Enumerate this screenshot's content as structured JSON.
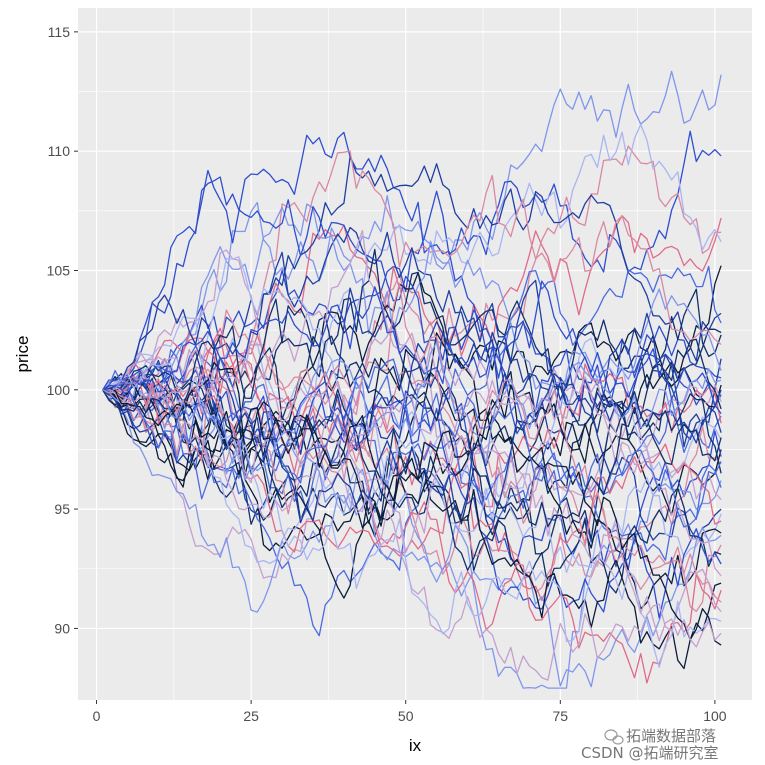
{
  "chart_data": {
    "type": "line",
    "title": "",
    "xlabel": "ix",
    "ylabel": "price",
    "xlim": [
      -3,
      106
    ],
    "ylim": [
      87,
      116
    ],
    "x_ticks": [
      0,
      25,
      50,
      75,
      100
    ],
    "x_tick_labels": [
      "0",
      "25",
      "50",
      "75",
      "100"
    ],
    "y_ticks": [
      90,
      95,
      100,
      105,
      110,
      115
    ],
    "y_tick_labels": [
      "90",
      "95",
      "100",
      "105",
      "110",
      "115"
    ],
    "x_range": [
      1,
      101
    ],
    "start_value": 100,
    "series_count": 50,
    "grid": true,
    "legend": "none",
    "panel_background": "#ebebeb",
    "grid_color": "#ffffff",
    "palette": [
      "#0b1d3a",
      "#12306b",
      "#1f3fa3",
      "#2f4fd0",
      "#4a6be0",
      "#7f96ec",
      "#a9b6f2",
      "#c4a0cf",
      "#d98aa3",
      "#e06b88"
    ],
    "series_endpoints": [
      {
        "color": "#7f96ec",
        "peak": 114.8,
        "end": 113.2
      },
      {
        "color": "#2f4fd0",
        "peak": 112.6,
        "end": 109.8
      },
      {
        "color": "#e06b88",
        "peak": 109.3,
        "end": 107.2
      },
      {
        "color": "#d98aa3",
        "peak": 108.5,
        "end": 106.6
      },
      {
        "color": "#12306b",
        "peak": 108.0,
        "end": 102.4
      },
      {
        "color": "#a9b6f2",
        "peak": 106.5,
        "end": 106.2
      },
      {
        "color": "#0b1d3a",
        "peak": 105.2,
        "end": 105.2
      },
      {
        "color": "#2f4fd0",
        "peak": 107.7,
        "end": 100.5
      },
      {
        "color": "#1f3fa3",
        "peak": 104.5,
        "end": 103.2
      },
      {
        "color": "#4a6be0",
        "peak": 104.0,
        "end": 102.8
      },
      {
        "color": "#12306b",
        "peak": 104.6,
        "end": 102.3
      },
      {
        "color": "#d98aa3",
        "peak": 104.2,
        "end": 101.9
      },
      {
        "color": "#1f3fa3",
        "peak": 103.8,
        "end": 101.3
      },
      {
        "color": "#7f96ec",
        "peak": 103.4,
        "end": 100.8
      },
      {
        "color": "#0b1d3a",
        "peak": 104.0,
        "end": 100.2
      },
      {
        "color": "#2f4fd0",
        "peak": 103.5,
        "end": 99.8
      },
      {
        "color": "#c4a0cf",
        "peak": 102.9,
        "end": 99.5
      },
      {
        "color": "#12306b",
        "peak": 103.3,
        "end": 99.2
      },
      {
        "color": "#4a6be0",
        "peak": 102.8,
        "end": 98.9
      },
      {
        "color": "#e06b88",
        "peak": 103.6,
        "end": 98.6
      },
      {
        "color": "#1f3fa3",
        "peak": 102.5,
        "end": 98.2
      },
      {
        "color": "#a9b6f2",
        "peak": 102.3,
        "end": 97.9
      },
      {
        "color": "#0b1d3a",
        "peak": 102.8,
        "end": 97.5
      },
      {
        "color": "#2f4fd0",
        "peak": 102.2,
        "end": 97.2
      },
      {
        "color": "#d98aa3",
        "peak": 102.0,
        "end": 96.9
      },
      {
        "color": "#12306b",
        "peak": 101.9,
        "end": 96.5
      },
      {
        "color": "#7f96ec",
        "peak": 101.6,
        "end": 96.2
      },
      {
        "color": "#4a6be0",
        "peak": 101.8,
        "end": 95.9
      },
      {
        "color": "#c4a0cf",
        "peak": 101.5,
        "end": 95.4
      },
      {
        "color": "#1f3fa3",
        "peak": 101.4,
        "end": 95.0
      },
      {
        "color": "#a9b6f2",
        "peak": 101.2,
        "end": 94.8
      },
      {
        "color": "#e06b88",
        "peak": 101.3,
        "end": 94.5
      },
      {
        "color": "#0b1d3a",
        "peak": 101.0,
        "end": 94.0
      },
      {
        "color": "#7f96ec",
        "peak": 101.1,
        "end": 93.9
      },
      {
        "color": "#d98aa3",
        "peak": 100.9,
        "end": 93.5
      },
      {
        "color": "#12306b",
        "peak": 101.2,
        "end": 93.1
      },
      {
        "color": "#2f4fd0",
        "peak": 100.8,
        "end": 92.7
      },
      {
        "color": "#c4a0cf",
        "peak": 100.7,
        "end": 92.2
      },
      {
        "color": "#0b1d3a",
        "peak": 101.0,
        "end": 91.9
      },
      {
        "color": "#e06b88",
        "peak": 100.6,
        "end": 91.6
      },
      {
        "color": "#d98aa3",
        "peak": 100.5,
        "end": 91.1
      },
      {
        "color": "#c4a0cf",
        "peak": 100.4,
        "end": 90.7
      },
      {
        "color": "#a9b6f2",
        "peak": 100.8,
        "end": 90.3
      },
      {
        "color": "#0b1d3a",
        "peak": 100.9,
        "end": 89.3
      },
      {
        "color": "#c4a0cf",
        "peak": 100.3,
        "end": 89.8
      },
      {
        "color": "#4a6be0",
        "peak": 102.4,
        "end": 97.0
      },
      {
        "color": "#1f3fa3",
        "peak": 103.0,
        "end": 100.0
      },
      {
        "color": "#12306b",
        "peak": 102.7,
        "end": 98.0
      },
      {
        "color": "#2f4fd0",
        "peak": 101.7,
        "end": 99.0
      },
      {
        "color": "#7f96ec",
        "peak": 102.1,
        "end": 100.4
      }
    ]
  },
  "watermark": {
    "line1": "拓端数据部落",
    "line2": "CSDN @拓端研究室",
    "icon": "wechat-icon"
  }
}
